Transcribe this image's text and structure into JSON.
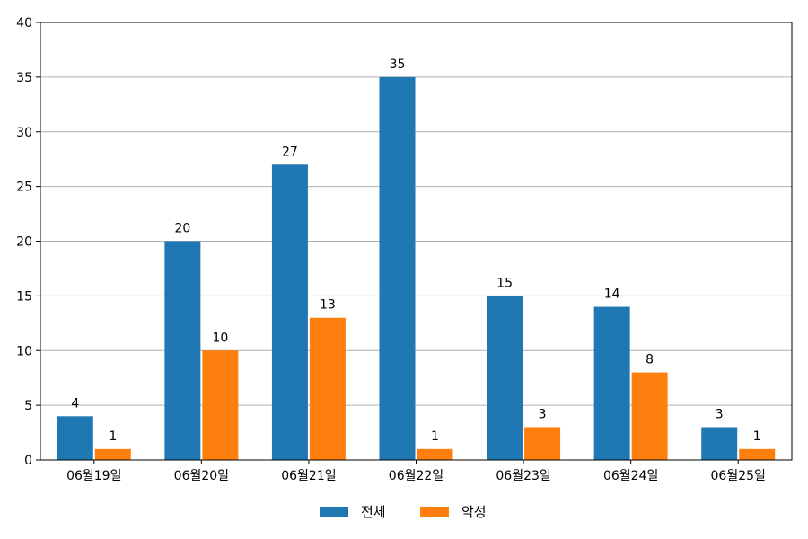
{
  "chart_data": {
    "type": "bar",
    "categories": [
      "06월19일",
      "06월20일",
      "06월21일",
      "06월22일",
      "06월23일",
      "06월24일",
      "06월25일"
    ],
    "series": [
      {
        "name": "전체",
        "values": [
          4,
          20,
          27,
          35,
          15,
          14,
          3
        ],
        "color": "#1f77b4"
      },
      {
        "name": "악성",
        "values": [
          1,
          10,
          13,
          1,
          3,
          8,
          1
        ],
        "color": "#ff7f0e"
      }
    ],
    "title": "",
    "xlabel": "",
    "ylabel": "",
    "ylim": [
      0,
      40
    ],
    "yticks": [
      0,
      5,
      10,
      15,
      20,
      25,
      30,
      35,
      40
    ],
    "grid": "horizontal",
    "legend_position": "bottom-center"
  }
}
